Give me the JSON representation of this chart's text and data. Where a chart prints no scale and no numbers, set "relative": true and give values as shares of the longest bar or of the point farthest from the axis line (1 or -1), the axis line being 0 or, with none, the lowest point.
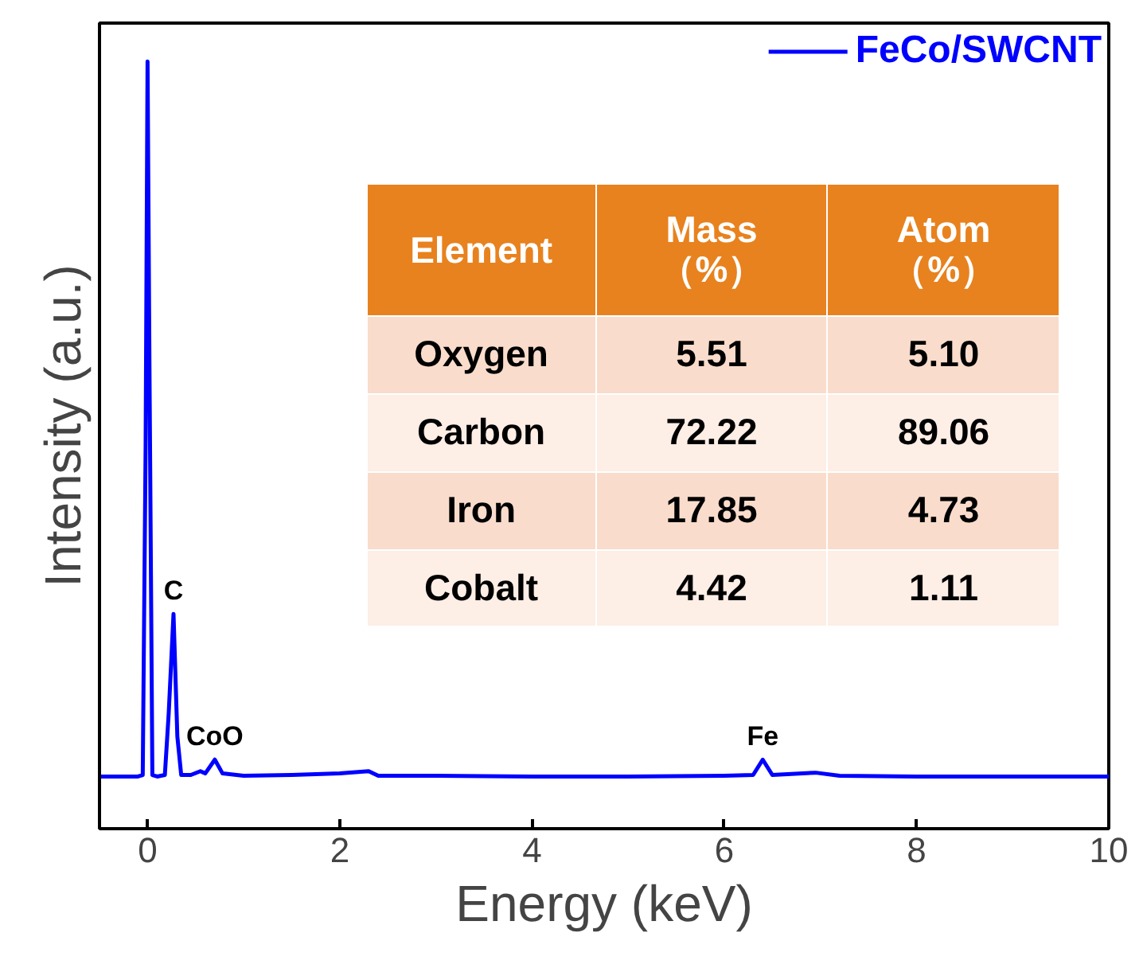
{
  "chart_data": {
    "type": "line",
    "xlabel": "Energy (keV)",
    "ylabel": "Intensity (a.u.)",
    "relative": true,
    "legend": "top right",
    "xlim": [
      -0.5,
      10
    ],
    "xticks": [
      0,
      2,
      4,
      6,
      8,
      10
    ],
    "grid": false,
    "series": [
      {
        "name": "FeCo/SWCNT",
        "color": "#0000ff",
        "x": [
          -0.5,
          -0.1,
          -0.05,
          -0.02,
          0,
          0.02,
          0.05,
          0.1,
          0.18,
          0.22,
          0.27,
          0.31,
          0.35,
          0.45,
          0.55,
          0.6,
          0.7,
          0.78,
          1.0,
          1.5,
          2.0,
          2.3,
          2.4,
          3,
          4,
          5,
          6,
          6.3,
          6.4,
          6.5,
          6.95,
          7.2,
          8,
          9,
          10
        ],
        "values": [
          0.068,
          0.068,
          0.07,
          0.5,
          1.0,
          0.6,
          0.07,
          0.068,
          0.07,
          0.15,
          0.28,
          0.12,
          0.07,
          0.07,
          0.075,
          0.072,
          0.09,
          0.072,
          0.069,
          0.07,
          0.072,
          0.075,
          0.069,
          0.069,
          0.068,
          0.068,
          0.069,
          0.07,
          0.09,
          0.07,
          0.073,
          0.069,
          0.068,
          0.068,
          0.068
        ]
      }
    ],
    "annotations": [
      {
        "text": "C",
        "x": 0.27,
        "y": 0.28
      },
      {
        "text": "CoO",
        "x": 0.7,
        "y": 0.09
      },
      {
        "text": "Fe",
        "x": 6.4,
        "y": 0.09
      },
      "Element",
      "Mass\n（%）",
      "Atom\n（%）",
      "Oxygen",
      "5.51",
      "5.10",
      "Carbon",
      "72.22",
      "89.06",
      "Iron",
      "17.85",
      "4.73",
      "Cobalt",
      "4.42",
      "1.11"
    ]
  }
}
